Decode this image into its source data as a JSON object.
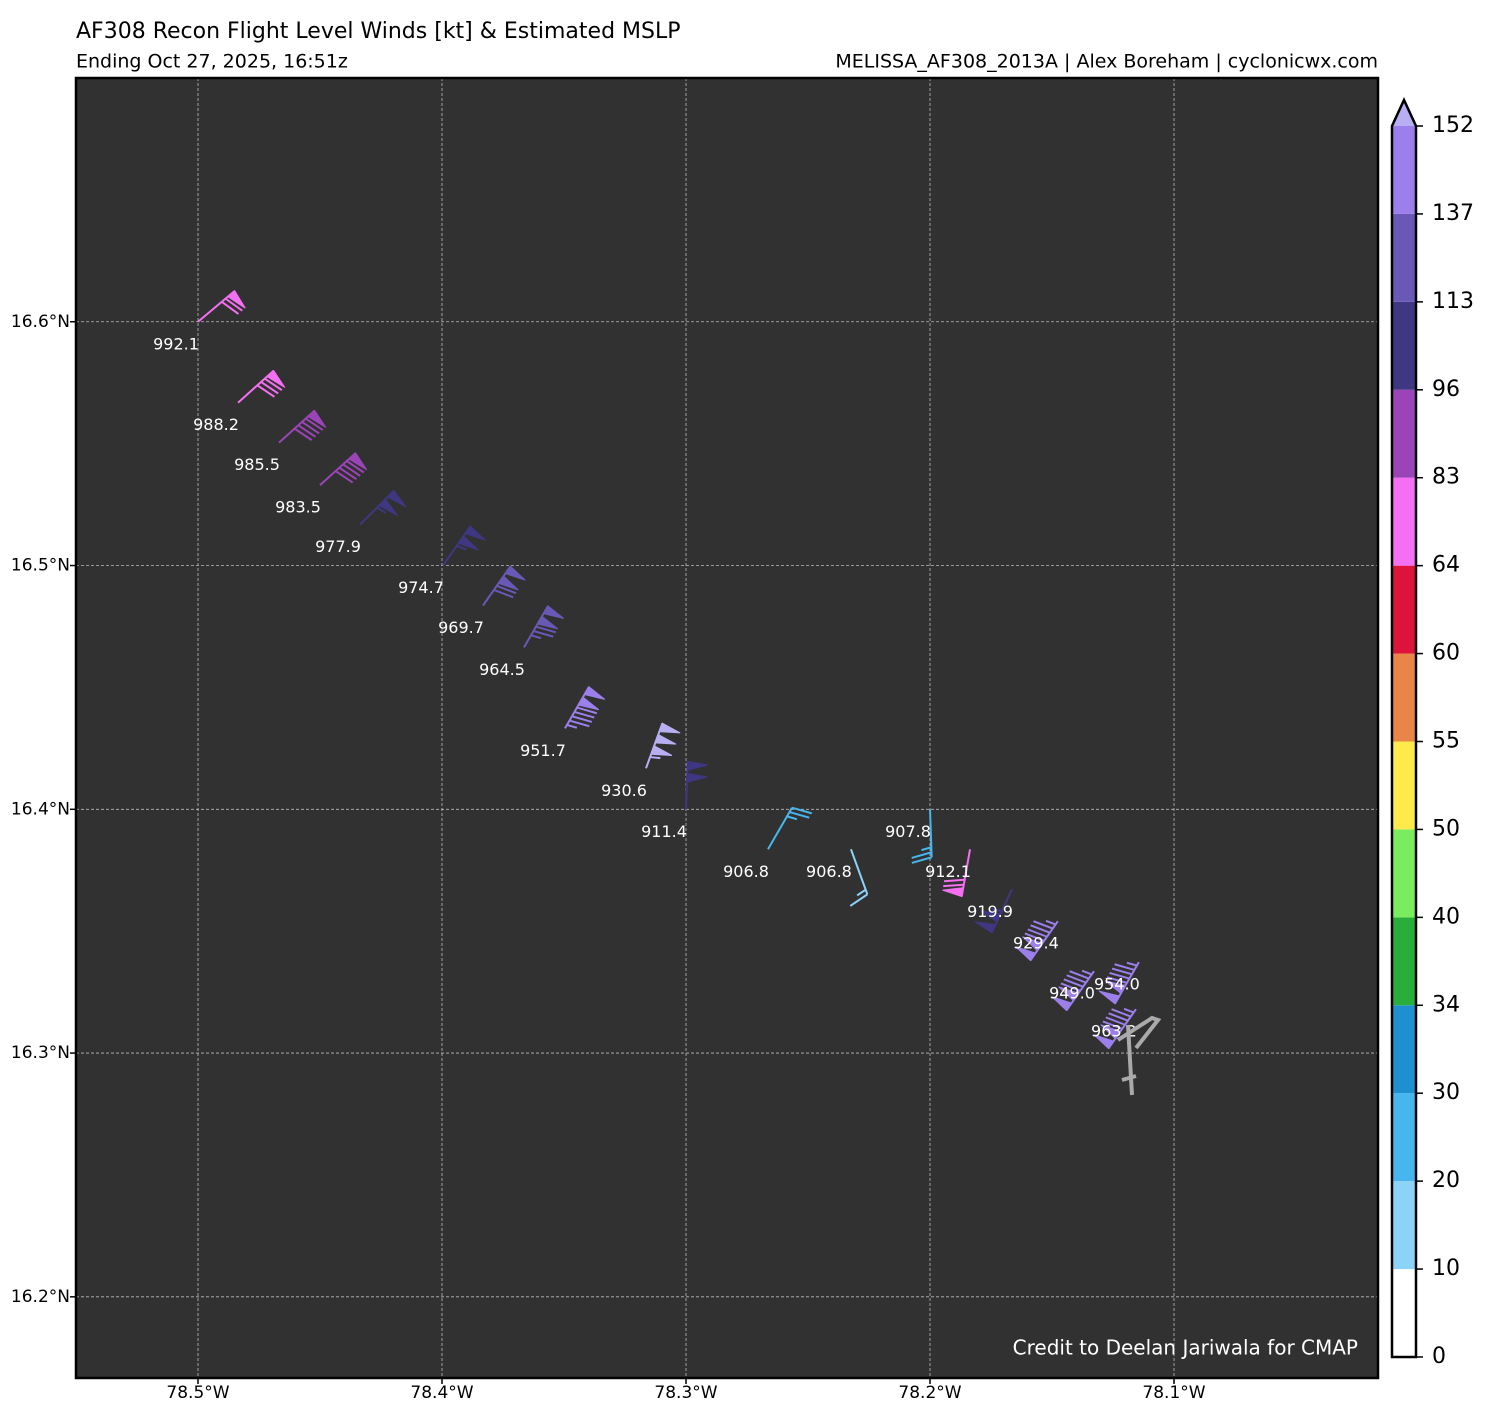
{
  "chart_data": {
    "type": "wind-barb",
    "title": "AF308 Recon Flight Level Winds [kt] & Estimated MSLP",
    "subtitle": "Ending Oct 27, 2025, 16:51z",
    "source": "MELISSA_AF308_2013A | Alex Boreham | cyclonicwx.com",
    "credit": "Credit to Deelan Jariwala for CMAP",
    "xlim": [
      -78.55,
      -78.0164
    ],
    "ylim": [
      16.1667,
      16.7
    ],
    "xticks": [
      {
        "value": -78.5,
        "label": "78.5°W"
      },
      {
        "value": -78.4,
        "label": "78.4°W"
      },
      {
        "value": -78.3,
        "label": "78.3°W"
      },
      {
        "value": -78.2,
        "label": "78.2°W"
      },
      {
        "value": -78.1,
        "label": "78.1°W"
      }
    ],
    "yticks": [
      {
        "value": 16.6,
        "label": "16.6°N"
      },
      {
        "value": 16.5,
        "label": "16.5°N"
      },
      {
        "value": 16.4,
        "label": "16.4°N"
      },
      {
        "value": 16.3,
        "label": "16.3°N"
      },
      {
        "value": 16.2,
        "label": "16.2°N"
      }
    ],
    "grid": true,
    "lon": [
      -78.5,
      -78.4836,
      -78.4668,
      -78.45,
      -78.4336,
      -78.3996,
      -78.3832,
      -78.3664,
      -78.3496,
      -78.3164,
      -78.3,
      -78.2664,
      -78.2324,
      -78.2,
      -78.1836,
      -78.1664,
      -78.1476,
      -78.1328,
      -78.1144,
      -78.1156
    ],
    "lat": [
      16.6,
      16.5668,
      16.5504,
      16.533,
      16.5168,
      16.5,
      16.4836,
      16.4664,
      16.4332,
      16.4168,
      16.4,
      16.3836,
      16.3836,
      16.4,
      16.3836,
      16.3672,
      16.3541,
      16.3336,
      16.3373,
      16.318
    ],
    "wind_speed": [
      70,
      80,
      90,
      90,
      105,
      105,
      120,
      125,
      145,
      155,
      100,
      25,
      15,
      25,
      70,
      105,
      145,
      145,
      145,
      145
    ],
    "wind_direction": [
      50,
      48,
      48,
      48,
      45,
      35,
      35,
      30,
      30,
      20,
      2,
      30,
      160,
      178,
      190,
      205,
      215,
      215,
      210,
      215
    ],
    "pressure_labels": [
      "992.1",
      "988.2",
      "985.5",
      "983.5",
      "977.9",
      "974.7",
      "969.7",
      "964.5",
      "951.7",
      "930.6",
      "911.4",
      "906.8",
      "906.8",
      "907.8",
      "912.1",
      "919.9",
      "929.4",
      "949.0",
      "954.0",
      "963.2"
    ],
    "colorbar": {
      "levels": [
        0,
        10,
        20,
        30,
        34,
        40,
        50,
        55,
        60,
        64,
        83,
        96,
        113,
        137,
        152
      ],
      "colors": [
        "#ffffff",
        "#8cd3f8",
        "#48b6ee",
        "#1f90cf",
        "#29ad3b",
        "#7aec5f",
        "#ffea4c",
        "#ea854a",
        "#dc143c",
        "#f46ff2",
        "#9b44b8",
        "#3f3782",
        "#6a58b6",
        "#9c7feb"
      ],
      "extend_color": "#b8aef2"
    }
  }
}
